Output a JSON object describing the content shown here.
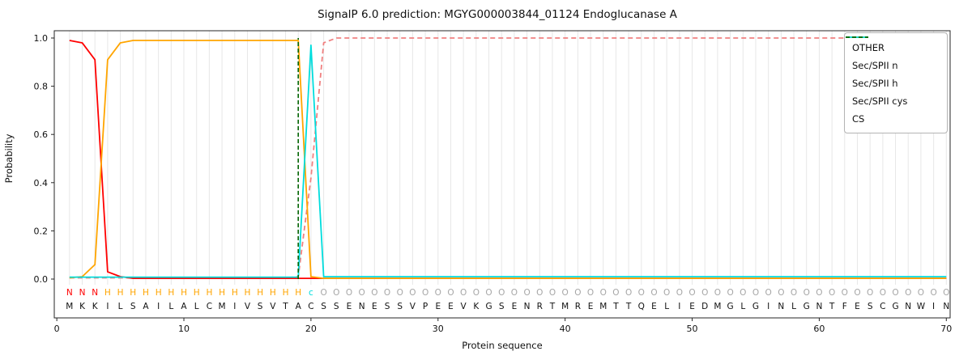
{
  "title": "SignalP 6.0 prediction: MGYG000003844_01124 Endoglucanase A",
  "axes": {
    "ylabel": "Probability",
    "xlabel": "Protein sequence",
    "yticks": [
      0.0,
      0.2,
      0.4,
      0.6,
      0.8,
      1.0
    ],
    "xticks": [
      0,
      10,
      20,
      30,
      40,
      50,
      60,
      70
    ]
  },
  "chart_data": {
    "type": "line",
    "xlim": [
      -0.2,
      70.3
    ],
    "ylim": [
      0,
      1.05
    ],
    "grid": "vertical-per-residue",
    "legend_position": "upper-right",
    "sequence": "MKKILSAILALCMIVSVTACSSENESSVPEEVKGSENRTMREMTTQELIEDMGLGINLGNTFESCGNWIN",
    "annotation_row": "NNNHHHHHHHHHHHHHHHHcOOOOOOOOOOOOOOOOOOOOOOOOOOOOOOOOOOOOOOOOOOOOOOOOOO",
    "annotation_colors": {
      "N": "#ff0000",
      "H": "#ffa500",
      "c": "#00dddd",
      "O": "#a6a6a6"
    },
    "sequence_color": "#111111",
    "series": [
      {
        "name": "OTHER",
        "color": "#f08080",
        "dash": "6,4",
        "values": [
          0.005,
          0.005,
          0.005,
          0.005,
          0.005,
          0.005,
          0.005,
          0.005,
          0.005,
          0.005,
          0.005,
          0.005,
          0.005,
          0.005,
          0.005,
          0.005,
          0.005,
          0.005,
          0.01,
          0.42,
          0.98,
          1,
          1,
          1,
          1,
          1,
          1,
          1,
          1,
          1,
          1,
          1,
          1,
          1,
          1,
          1,
          1,
          1,
          1,
          1,
          1,
          1,
          1,
          1,
          1,
          1,
          1,
          1,
          1,
          1,
          1,
          1,
          1,
          1,
          1,
          1,
          1,
          1,
          1,
          1,
          1,
          1,
          1,
          1,
          1,
          1,
          1,
          1,
          1,
          1
        ]
      },
      {
        "name": "Sec/SPII n",
        "color": "#ff0000",
        "dash": null,
        "values": [
          0.99,
          0.98,
          0.91,
          0.03,
          0.01,
          0.003,
          0.003,
          0.003,
          0.003,
          0.003,
          0.003,
          0.003,
          0.003,
          0.003,
          0.003,
          0.003,
          0.003,
          0.003,
          0.003,
          0.003,
          0.003,
          0.003,
          0.003,
          0.003,
          0.003,
          0.003,
          0.003,
          0.003,
          0.003,
          0.003,
          0.003,
          0.003,
          0.003,
          0.003,
          0.003,
          0.003,
          0.003,
          0.003,
          0.003,
          0.003,
          0.003,
          0.003,
          0.003,
          0.003,
          0.003,
          0.003,
          0.003,
          0.003,
          0.003,
          0.003,
          0.003,
          0.003,
          0.003,
          0.003,
          0.003,
          0.003,
          0.003,
          0.003,
          0.003,
          0.003,
          0.003,
          0.003,
          0.003,
          0.003,
          0.003,
          0.003,
          0.003,
          0.003,
          0.003,
          0.003
        ]
      },
      {
        "name": "Sec/SPII h",
        "color": "#ffa500",
        "dash": null,
        "values": [
          0.005,
          0.01,
          0.06,
          0.91,
          0.98,
          0.99,
          0.99,
          0.99,
          0.99,
          0.99,
          0.99,
          0.99,
          0.99,
          0.99,
          0.99,
          0.99,
          0.99,
          0.99,
          0.99,
          0.01,
          0.003,
          0.003,
          0.003,
          0.003,
          0.003,
          0.003,
          0.003,
          0.003,
          0.003,
          0.003,
          0.003,
          0.003,
          0.003,
          0.003,
          0.003,
          0.003,
          0.003,
          0.003,
          0.003,
          0.003,
          0.003,
          0.003,
          0.003,
          0.003,
          0.003,
          0.003,
          0.003,
          0.003,
          0.003,
          0.003,
          0.003,
          0.003,
          0.003,
          0.003,
          0.003,
          0.003,
          0.003,
          0.003,
          0.003,
          0.003,
          0.003,
          0.003,
          0.003,
          0.003,
          0.003,
          0.003,
          0.003,
          0.003,
          0.003,
          0.003
        ]
      },
      {
        "name": "Sec/SPII cys",
        "color": "#00dddd",
        "dash": null,
        "values": [
          0.008,
          0.008,
          0.008,
          0.008,
          0.008,
          0.008,
          0.008,
          0.008,
          0.008,
          0.008,
          0.008,
          0.008,
          0.008,
          0.008,
          0.008,
          0.008,
          0.008,
          0.008,
          0.008,
          0.97,
          0.01,
          0.01,
          0.01,
          0.01,
          0.01,
          0.01,
          0.01,
          0.01,
          0.01,
          0.01,
          0.01,
          0.01,
          0.01,
          0.01,
          0.01,
          0.01,
          0.01,
          0.01,
          0.01,
          0.01,
          0.01,
          0.01,
          0.01,
          0.01,
          0.01,
          0.01,
          0.01,
          0.01,
          0.01,
          0.01,
          0.01,
          0.01,
          0.01,
          0.01,
          0.01,
          0.01,
          0.01,
          0.01,
          0.01,
          0.01,
          0.01,
          0.01,
          0.01,
          0.01,
          0.01,
          0.01,
          0.01,
          0.01,
          0.01,
          0.01
        ]
      },
      {
        "name": "CS",
        "color": "#006400",
        "dash": "5,3",
        "cs_position": 19
      }
    ]
  }
}
